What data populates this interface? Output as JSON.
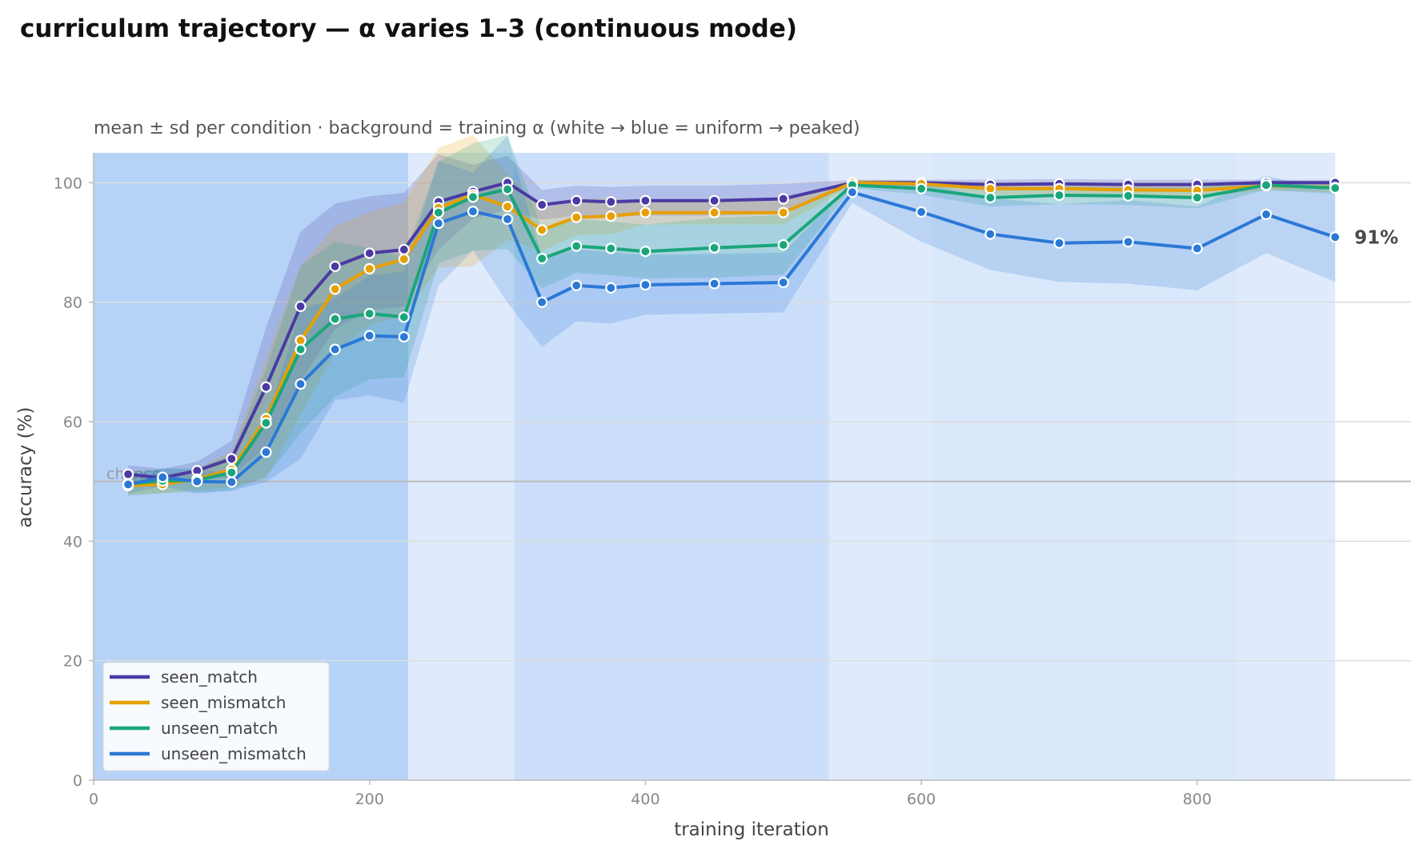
{
  "chart_data": {
    "type": "line",
    "title": "curriculum trajectory — α varies 1–3 (continuous mode)",
    "subtitle": "mean ± sd per condition · background = training α (white → blue = uniform → peaked)",
    "xlabel": "training iteration",
    "ylabel": "accuracy (%)",
    "xlim": [
      0,
      955
    ],
    "ylim": [
      0,
      105
    ],
    "xticks": [
      0,
      200,
      400,
      600,
      800
    ],
    "yticks": [
      0,
      20,
      40,
      60,
      80,
      100
    ],
    "grid": "horizontal",
    "legend_position": "bottom-left",
    "chance": {
      "value": 50,
      "label": "chance"
    },
    "end_label": {
      "series": "unseen_mismatch",
      "text": "91%"
    },
    "background_bands": [
      {
        "x0": 0,
        "x1": 228,
        "alpha_level": 1.0
      },
      {
        "x0": 228,
        "x1": 305,
        "alpha_level": 0.15
      },
      {
        "x0": 305,
        "x1": 533,
        "alpha_level": 0.55
      },
      {
        "x0": 533,
        "x1": 608,
        "alpha_level": 0.15
      },
      {
        "x0": 608,
        "x1": 829,
        "alpha_level": 0.25
      },
      {
        "x0": 829,
        "x1": 900,
        "alpha_level": 0.15
      }
    ],
    "x": [
      25,
      50,
      75,
      100,
      125,
      150,
      175,
      200,
      225,
      250,
      275,
      300,
      325,
      350,
      375,
      400,
      450,
      500,
      550,
      600,
      650,
      700,
      750,
      800,
      850,
      900
    ],
    "series": [
      {
        "name": "seen_match",
        "color": "#4b3aa3",
        "values": [
          51.2,
          50.6,
          51.8,
          53.8,
          65.8,
          79.3,
          86.0,
          88.2,
          88.8,
          96.8,
          98.5,
          100.0,
          96.3,
          97.0,
          96.8,
          97.0,
          97.0,
          97.3,
          100.0,
          100.0,
          99.7,
          99.8,
          99.7,
          99.7,
          100.0,
          100.0
        ],
        "sd": [
          1.5,
          1.5,
          1.5,
          3.0,
          10.0,
          12.5,
          10.5,
          9.5,
          9.5,
          8.0,
          4.5,
          4.5,
          2.5,
          2.5,
          2.5,
          2.5,
          2.5,
          2.5,
          0.5,
          0.5,
          0.8,
          0.8,
          0.8,
          0.8,
          0.5,
          0.5
        ]
      },
      {
        "name": "seen_mismatch",
        "color": "#e69f00",
        "values": [
          49.3,
          49.5,
          50.4,
          52.0,
          60.5,
          73.6,
          82.2,
          85.6,
          87.2,
          95.8,
          98.0,
          96.0,
          92.1,
          94.2,
          94.4,
          95.0,
          95.0,
          95.0,
          100.0,
          99.8,
          99.0,
          99.0,
          98.8,
          98.7,
          99.5,
          99.2
        ],
        "sd": [
          1.5,
          1.5,
          1.8,
          3.0,
          10.0,
          12.5,
          10.5,
          9.5,
          9.5,
          10.0,
          12.0,
          5.5,
          3.5,
          3.0,
          3.0,
          2.0,
          2.0,
          2.0,
          0.5,
          0.5,
          1.0,
          1.0,
          1.0,
          1.0,
          0.8,
          0.8
        ]
      },
      {
        "name": "unseen_match",
        "color": "#1aa67a",
        "values": [
          49.6,
          50.1,
          50.2,
          51.5,
          59.8,
          72.1,
          77.2,
          78.1,
          77.5,
          95.0,
          97.6,
          98.9,
          87.3,
          89.4,
          89.0,
          88.5,
          89.1,
          89.6,
          99.6,
          99.0,
          97.5,
          97.9,
          97.8,
          97.5,
          99.6,
          99.1
        ],
        "sd": [
          2.0,
          2.0,
          2.0,
          3.0,
          9.0,
          14.0,
          13.0,
          11.0,
          10.0,
          8.5,
          9.0,
          10.0,
          5.0,
          4.5,
          4.5,
          4.5,
          5.0,
          5.0,
          0.5,
          1.0,
          1.5,
          1.5,
          1.5,
          1.8,
          0.8,
          1.0
        ]
      },
      {
        "name": "unseen_mismatch",
        "color": "#2b78d6",
        "values": [
          49.5,
          50.7,
          50.0,
          49.9,
          54.9,
          66.3,
          72.1,
          74.4,
          74.2,
          93.2,
          95.2,
          93.9,
          80.0,
          82.8,
          82.4,
          82.9,
          83.1,
          83.3,
          98.4,
          95.1,
          91.4,
          89.9,
          90.1,
          89.0,
          94.7,
          90.9
        ],
        "sd": [
          1.5,
          1.5,
          2.0,
          1.5,
          5.0,
          12.5,
          8.5,
          10.0,
          11.0,
          10.5,
          6.5,
          14.0,
          7.5,
          6.0,
          6.0,
          5.0,
          5.0,
          5.0,
          1.8,
          5.0,
          6.0,
          6.5,
          7.0,
          7.0,
          6.5,
          7.5
        ]
      }
    ]
  }
}
